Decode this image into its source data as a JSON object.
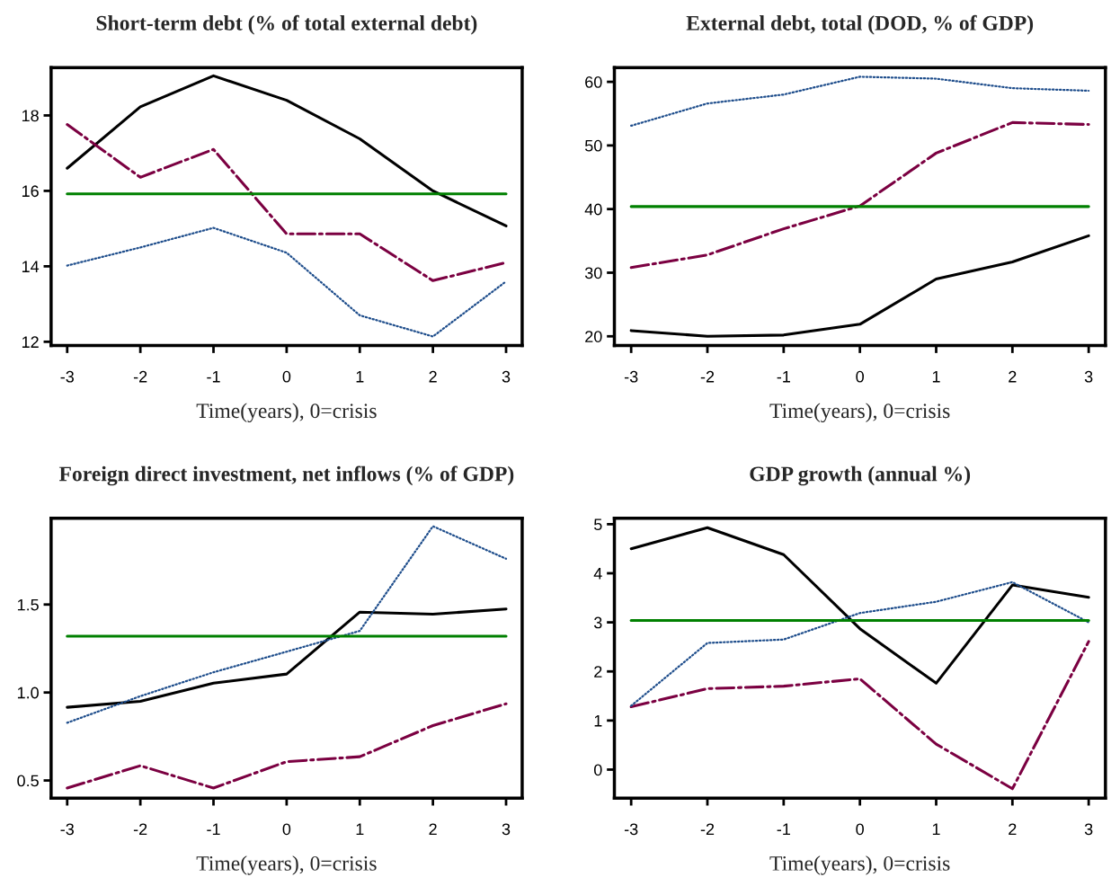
{
  "chart_data": [
    {
      "type": "line",
      "title": "Short-term debt (% of total external debt)",
      "xlabel": "Time(years), 0=crisis",
      "x": [
        -3,
        -2,
        -1,
        0,
        1,
        2,
        3
      ],
      "xlim": [
        -3.22,
        3.22
      ],
      "xticks": [
        -3,
        -2,
        -1,
        0,
        1,
        2,
        3
      ],
      "ylim": [
        11.9,
        19.27
      ],
      "yticks": [
        12,
        14,
        16,
        18
      ],
      "grid": false,
      "legend": false,
      "marker": "none",
      "series": [
        {
          "color": "#000000",
          "line_style": "solid",
          "values": [
            16.6,
            18.23,
            19.05,
            18.4,
            17.38,
            16.0,
            15.07
          ]
        },
        {
          "color": "#7b0041",
          "line_style": "dashdot",
          "values": [
            17.76,
            16.36,
            17.1,
            14.86,
            14.86,
            13.62,
            14.1
          ]
        },
        {
          "color": "#1f4e8c",
          "line_style": "dotted",
          "values": [
            14.02,
            14.5,
            15.02,
            14.36,
            12.7,
            12.14,
            13.6
          ]
        },
        {
          "color": "#008000",
          "line_style": "solid",
          "values": [
            15.92,
            15.92,
            15.92,
            15.92,
            15.92,
            15.92,
            15.92
          ]
        }
      ]
    },
    {
      "type": "line",
      "title": "External debt, total (DOD, % of GDP)",
      "xlabel": "Time(years), 0=crisis",
      "x": [
        -3,
        -2,
        -1,
        0,
        1,
        2,
        3
      ],
      "xlim": [
        -3.22,
        3.22
      ],
      "xticks": [
        -3,
        -2,
        -1,
        0,
        1,
        2,
        3
      ],
      "ylim": [
        18.55,
        62.25
      ],
      "yticks": [
        20,
        30,
        40,
        50,
        60
      ],
      "grid": false,
      "legend": false,
      "marker": "none",
      "series": [
        {
          "color": "#000000",
          "line_style": "solid",
          "values": [
            20.9,
            20.0,
            20.2,
            21.9,
            29.0,
            31.7,
            35.8
          ]
        },
        {
          "color": "#7b0041",
          "line_style": "dashdot",
          "values": [
            30.8,
            32.8,
            36.9,
            40.5,
            48.8,
            53.6,
            53.3
          ]
        },
        {
          "color": "#1f4e8c",
          "line_style": "dotted",
          "values": [
            53.1,
            56.6,
            58.0,
            60.8,
            60.5,
            59.0,
            58.6
          ]
        },
        {
          "color": "#008000",
          "line_style": "solid",
          "values": [
            40.4,
            40.4,
            40.4,
            40.4,
            40.4,
            40.4,
            40.4
          ]
        }
      ]
    },
    {
      "type": "line",
      "title": "Foreign direct investment, net inflows (% of GDP)",
      "xlabel": "Time(years), 0=crisis",
      "x": [
        -3,
        -2,
        -1,
        0,
        1,
        2,
        3
      ],
      "xlim": [
        -3.22,
        3.22
      ],
      "xticks": [
        -3,
        -2,
        -1,
        0,
        1,
        2,
        3
      ],
      "ylim": [
        0.4,
        1.99
      ],
      "yticks": [
        {
          "value": 0.5,
          "label": "0.5"
        },
        {
          "value": 1.0,
          "label": "1.0"
        },
        {
          "value": 1.5,
          "label": "1.5"
        }
      ],
      "grid": false,
      "legend": false,
      "marker": "none",
      "series": [
        {
          "color": "#000000",
          "line_style": "solid",
          "values": [
            0.916,
            0.95,
            1.053,
            1.105,
            1.457,
            1.445,
            1.475
          ]
        },
        {
          "color": "#7b0041",
          "line_style": "dashdot",
          "values": [
            0.457,
            0.584,
            0.457,
            0.607,
            0.635,
            0.812,
            0.936
          ]
        },
        {
          "color": "#1f4e8c",
          "line_style": "dotted",
          "values": [
            0.828,
            0.979,
            1.115,
            1.232,
            1.35,
            1.945,
            1.76
          ]
        },
        {
          "color": "#008000",
          "line_style": "solid",
          "values": [
            1.32,
            1.32,
            1.32,
            1.32,
            1.32,
            1.32,
            1.32
          ]
        }
      ]
    },
    {
      "type": "line",
      "title": "GDP growth (annual %)",
      "xlabel": "Time(years), 0=crisis",
      "x": [
        -3,
        -2,
        -1,
        0,
        1,
        2,
        3
      ],
      "xlim": [
        -3.22,
        3.22
      ],
      "xticks": [
        -3,
        -2,
        -1,
        0,
        1,
        2,
        3
      ],
      "ylim": [
        -0.58,
        5.12
      ],
      "yticks": [
        0,
        1,
        2,
        3,
        4,
        5
      ],
      "grid": false,
      "legend": false,
      "marker": "none",
      "series": [
        {
          "color": "#000000",
          "line_style": "solid",
          "values": [
            4.5,
            4.93,
            4.38,
            2.87,
            1.76,
            3.76,
            3.51
          ]
        },
        {
          "color": "#7b0041",
          "line_style": "dashdot",
          "values": [
            1.28,
            1.65,
            1.7,
            1.85,
            0.52,
            -0.39,
            2.61
          ]
        },
        {
          "color": "#1f4e8c",
          "line_style": "dotted",
          "values": [
            1.3,
            2.58,
            2.65,
            3.19,
            3.42,
            3.82,
            3.0
          ]
        },
        {
          "color": "#008000",
          "line_style": "solid",
          "values": [
            3.04,
            3.04,
            3.04,
            3.04,
            3.04,
            3.04,
            3.04
          ]
        }
      ]
    }
  ]
}
